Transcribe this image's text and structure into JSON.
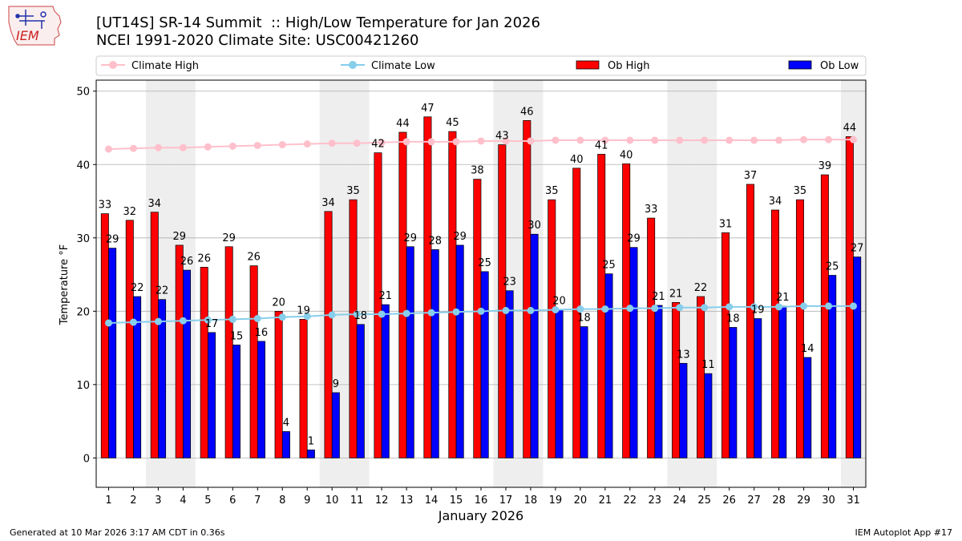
{
  "header": {
    "title_line1": "[UT14S] SR-14 Summit  :: High/Low Temperature for Jan 2026",
    "title_line2": "NCEI 1991-2020 Climate Site: USC00421260",
    "logo_text": "IEM"
  },
  "footer": {
    "generated": "Generated at 10 Mar 2026 3:17 AM CDT in 0.36s",
    "app": "IEM Autoplot App #17"
  },
  "colors": {
    "ob_high": "#ff0000",
    "ob_low": "#0000ff",
    "climate_high": "#ffc0cb",
    "climate_low": "#87ceeb",
    "weekend_shade": "#eeeeee",
    "grid": "#b0b0b0"
  },
  "chart_data": {
    "type": "bar",
    "title": "[UT14S] SR-14 Summit  :: High/Low Temperature for Jan 2026",
    "subtitle": "NCEI 1991-2020 Climate Site: USC00421260",
    "xlabel": "January 2026",
    "ylabel": "Temperature °F",
    "ylim": [
      -4,
      51.5
    ],
    "yticks": [
      0,
      10,
      20,
      30,
      40,
      50
    ],
    "grid": "horizontal",
    "legend_position": "top",
    "legend": [
      "Climate High",
      "Climate Low",
      "Ob High",
      "Ob Low"
    ],
    "categories": [
      "1",
      "2",
      "3",
      "4",
      "5",
      "6",
      "7",
      "8",
      "9",
      "10",
      "11",
      "12",
      "13",
      "14",
      "15",
      "16",
      "17",
      "18",
      "19",
      "20",
      "21",
      "22",
      "23",
      "24",
      "25",
      "26",
      "27",
      "28",
      "29",
      "30",
      "31"
    ],
    "shaded_days": [
      3,
      4,
      10,
      11,
      17,
      18,
      24,
      25,
      31
    ],
    "series": [
      {
        "name": "Ob High",
        "kind": "bar",
        "values": [
          33.3,
          32.4,
          33.5,
          29.0,
          26.0,
          28.8,
          26.2,
          20.0,
          18.9,
          33.6,
          35.2,
          41.6,
          44.4,
          46.5,
          44.5,
          38.0,
          42.7,
          46.0,
          35.2,
          39.5,
          41.4,
          40.1,
          32.7,
          21.2,
          22.0,
          30.7,
          37.3,
          33.8,
          35.2,
          38.6,
          43.8
        ],
        "labels": [
          "33",
          "32",
          "34",
          "29",
          "26",
          "29",
          "26",
          "20",
          "19",
          "34",
          "35",
          "42",
          "44",
          "47",
          "45",
          "38",
          "43",
          "46",
          "35",
          "40",
          "41",
          "40",
          "33",
          "21",
          "22",
          "31",
          "37",
          "34",
          "35",
          "39",
          "44"
        ]
      },
      {
        "name": "Ob Low",
        "kind": "bar",
        "values": [
          28.6,
          22.0,
          21.6,
          25.6,
          17.1,
          15.4,
          15.9,
          3.6,
          1.1,
          8.9,
          18.2,
          20.9,
          28.8,
          28.4,
          29.0,
          25.4,
          22.8,
          30.5,
          20.2,
          17.9,
          25.1,
          28.7,
          20.8,
          12.9,
          11.5,
          17.8,
          19.0,
          20.7,
          13.7,
          24.9,
          27.4
        ],
        "labels": [
          "29",
          "22",
          "22",
          "26",
          "17",
          "15",
          "16",
          "4",
          "1",
          "9",
          "18",
          "21",
          "29",
          "28",
          "29",
          "25",
          "23",
          "30",
          "20",
          "18",
          "25",
          "29",
          "21",
          "13",
          "11",
          "18",
          "19",
          "21",
          "14",
          "25",
          "27"
        ]
      },
      {
        "name": "Climate High",
        "kind": "line",
        "values": [
          42.1,
          42.2,
          42.3,
          42.3,
          42.4,
          42.5,
          42.6,
          42.7,
          42.8,
          42.9,
          42.9,
          43.0,
          43.1,
          43.1,
          43.1,
          43.2,
          43.2,
          43.2,
          43.3,
          43.3,
          43.3,
          43.3,
          43.3,
          43.3,
          43.3,
          43.3,
          43.3,
          43.3,
          43.4,
          43.4,
          43.4
        ]
      },
      {
        "name": "Climate Low",
        "kind": "line",
        "values": [
          18.4,
          18.5,
          18.6,
          18.7,
          18.8,
          18.9,
          19.0,
          19.2,
          19.3,
          19.5,
          19.6,
          19.6,
          19.7,
          19.8,
          19.9,
          20.0,
          20.1,
          20.1,
          20.2,
          20.3,
          20.3,
          20.4,
          20.4,
          20.5,
          20.5,
          20.6,
          20.6,
          20.6,
          20.7,
          20.7,
          20.7
        ]
      }
    ]
  }
}
